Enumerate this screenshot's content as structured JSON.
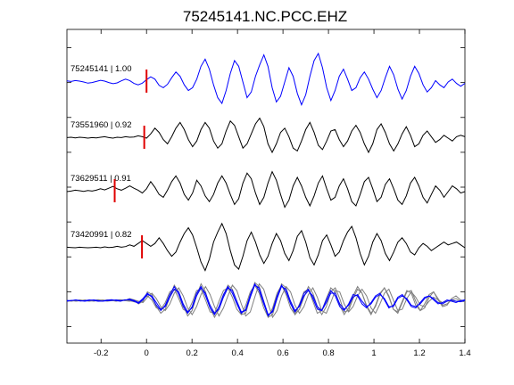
{
  "chart_data": {
    "type": "line",
    "title": "75245141.NC.PCC.EHZ",
    "xlabel": "",
    "ylabel": "",
    "xlim": [
      -0.35,
      1.4
    ],
    "x_ticks": [
      "-0.2",
      "0",
      "0.2",
      "0.4",
      "0.6",
      "0.8",
      "1",
      "1.2",
      "1.4"
    ],
    "x_tick_values": [
      -0.2,
      0,
      0.2,
      0.4,
      0.6,
      0.8,
      1,
      1.2,
      1.4
    ],
    "y_ticks_count": 9,
    "grid": false,
    "series": [
      {
        "label": "75245141 | 1.00",
        "color": "#0000ff",
        "pick_time": 0.0,
        "samples": [
          0.04,
          0.02,
          0.05,
          0.03,
          0.0,
          -0.04,
          -0.02,
          0.02,
          0.06,
          0.03,
          -0.02,
          -0.06,
          -0.03,
          0.04,
          0.1,
          0.05,
          -0.05,
          -0.1,
          -0.04,
          0.08,
          0.18,
          0.1,
          -0.12,
          -0.2,
          -0.08,
          0.15,
          0.35,
          0.2,
          -0.1,
          -0.3,
          -0.2,
          0.1,
          0.55,
          0.8,
          0.45,
          -0.1,
          -0.55,
          -0.75,
          -0.3,
          0.3,
          0.75,
          0.55,
          0.0,
          -0.55,
          -0.35,
          0.2,
          0.6,
          0.95,
          0.55,
          -0.2,
          -0.7,
          -0.5,
          0.0,
          0.5,
          0.2,
          -0.4,
          -0.8,
          -0.45,
          0.2,
          0.75,
          1.0,
          0.5,
          -0.2,
          -0.65,
          -0.3,
          0.2,
          0.45,
          0.1,
          -0.3,
          -0.2,
          0.15,
          0.35,
          0.1,
          -0.25,
          -0.55,
          -0.3,
          0.15,
          0.55,
          0.25,
          -0.25,
          -0.6,
          -0.3,
          0.2,
          0.55,
          0.3,
          -0.1,
          -0.35,
          -0.2,
          0.05,
          -0.1,
          -0.2,
          0.0,
          0.1,
          -0.05,
          -0.15,
          -0.05
        ]
      },
      {
        "label": "73551960 | 0.92",
        "color": "#000000",
        "pick_time": -0.01,
        "samples": [
          0.02,
          0.03,
          0.01,
          0.03,
          0.02,
          0.0,
          0.02,
          0.01,
          0.03,
          0.05,
          0.02,
          0.0,
          0.03,
          0.02,
          0.05,
          0.03,
          0.04,
          0.08,
          0.05,
          0.0,
          0.15,
          0.35,
          0.2,
          -0.05,
          -0.2,
          0.05,
          0.35,
          0.55,
          0.3,
          -0.05,
          -0.3,
          -0.1,
          0.3,
          0.55,
          0.35,
          -0.1,
          -0.35,
          -0.2,
          0.25,
          0.6,
          0.45,
          0.05,
          -0.35,
          -0.2,
          0.15,
          0.5,
          0.7,
          0.4,
          -0.2,
          -0.5,
          -0.2,
          0.2,
          0.35,
          0.05,
          -0.35,
          -0.45,
          -0.1,
          0.3,
          0.55,
          0.2,
          -0.25,
          -0.4,
          -0.1,
          0.25,
          0.3,
          -0.05,
          -0.3,
          -0.1,
          0.25,
          0.45,
          0.2,
          -0.2,
          -0.5,
          -0.2,
          0.3,
          0.5,
          0.2,
          -0.2,
          -0.45,
          -0.2,
          0.15,
          0.4,
          0.1,
          -0.3,
          -0.2,
          0.1,
          0.25,
          0.05,
          -0.15,
          -0.05,
          0.1,
          0.0,
          -0.1,
          0.05,
          0.1,
          0.05
        ]
      },
      {
        "label": "73629511 | 0.91",
        "color": "#000000",
        "pick_time": -0.14,
        "samples": [
          0.0,
          0.02,
          0.05,
          0.03,
          0.01,
          0.04,
          0.02,
          0.05,
          0.1,
          0.06,
          0.12,
          0.18,
          0.1,
          0.05,
          0.12,
          0.2,
          0.12,
          0.05,
          -0.05,
          0.1,
          0.35,
          0.15,
          -0.1,
          -0.2,
          0.05,
          0.35,
          0.55,
          0.3,
          -0.1,
          -0.3,
          -0.05,
          0.4,
          0.2,
          -0.15,
          -0.35,
          -0.1,
          0.3,
          0.55,
          0.3,
          -0.1,
          -0.45,
          -0.25,
          0.3,
          0.65,
          0.45,
          -0.05,
          -0.45,
          -0.2,
          0.3,
          0.7,
          0.4,
          -0.1,
          -0.55,
          -0.3,
          0.2,
          0.5,
          0.2,
          -0.2,
          -0.5,
          -0.15,
          0.3,
          0.55,
          0.1,
          -0.3,
          -0.2,
          0.2,
          0.45,
          0.1,
          -0.35,
          -0.5,
          -0.1,
          0.35,
          0.5,
          0.1,
          -0.35,
          -0.2,
          0.25,
          0.45,
          0.1,
          -0.3,
          -0.45,
          -0.15,
          0.3,
          0.5,
          0.2,
          -0.2,
          -0.4,
          -0.1,
          0.2,
          0.05,
          -0.2,
          0.0,
          0.2,
          0.1,
          -0.05,
          0.0
        ]
      },
      {
        "label": "73420991 | 0.82",
        "color": "#000000",
        "pick_time": -0.02,
        "samples": [
          0.02,
          0.01,
          0.0,
          0.02,
          0.01,
          0.0,
          0.01,
          0.02,
          0.0,
          0.03,
          0.01,
          0.02,
          0.05,
          0.02,
          0.04,
          0.1,
          0.05,
          0.15,
          0.25,
          0.15,
          0.05,
          0.15,
          0.35,
          0.15,
          -0.1,
          -0.3,
          -0.15,
          0.2,
          0.5,
          0.7,
          0.45,
          0.0,
          -0.5,
          -0.8,
          -0.4,
          0.2,
          0.55,
          0.85,
          0.5,
          -0.1,
          -0.6,
          -0.75,
          -0.3,
          0.25,
          0.55,
          0.2,
          -0.25,
          -0.55,
          -0.3,
          0.15,
          0.5,
          0.25,
          -0.2,
          -0.45,
          -0.1,
          0.4,
          0.6,
          0.2,
          -0.35,
          -0.6,
          -0.25,
          0.25,
          0.45,
          0.1,
          -0.3,
          -0.15,
          0.25,
          0.55,
          0.75,
          0.35,
          -0.2,
          -0.6,
          -0.3,
          0.2,
          0.5,
          0.25,
          -0.2,
          -0.45,
          -0.15,
          0.2,
          0.35,
          0.15,
          -0.15,
          -0.25,
          0.0,
          0.15,
          0.05,
          -0.1,
          0.0,
          0.1,
          0.2,
          0.1,
          0.15,
          0.2,
          0.1,
          0.0
        ]
      }
    ],
    "stack": {
      "description_colors": [
        "#0000ff",
        "#808080"
      ],
      "samples_blue_1": [
        0.03,
        0.02,
        0.05,
        0.02,
        0.0,
        0.03,
        0.05,
        0.02,
        0.0,
        0.02,
        0.03,
        0.05,
        0.02,
        0.04,
        0.08,
        0.03,
        -0.05,
        0.1,
        0.3,
        0.15,
        -0.15,
        -0.35,
        -0.15,
        0.25,
        0.55,
        0.25,
        -0.2,
        -0.45,
        -0.2,
        0.3,
        0.55,
        0.2,
        -0.25,
        -0.5,
        -0.2,
        0.25,
        0.55,
        0.3,
        -0.1,
        -0.45,
        -0.3,
        0.25,
        0.65,
        0.4,
        -0.1,
        -0.55,
        -0.35,
        0.2,
        0.6,
        0.35,
        -0.1,
        -0.4,
        -0.15,
        0.3,
        0.45,
        0.1,
        -0.3,
        -0.35,
        0.05,
        0.4,
        0.2,
        -0.2,
        -0.35,
        -0.1,
        0.25,
        0.2,
        -0.1,
        -0.25,
        -0.05,
        0.2,
        0.3,
        0.05,
        -0.25,
        -0.15,
        0.15,
        0.25,
        0.05,
        -0.2,
        -0.25,
        -0.05,
        0.15,
        0.2,
        0.05,
        -0.1,
        -0.05,
        0.05,
        0.0,
        -0.05,
        0.02,
        0.05
      ],
      "samples_blue_2": [
        0.0,
        0.03,
        0.04,
        0.01,
        0.02,
        0.05,
        0.03,
        0.0,
        0.01,
        0.04,
        0.06,
        0.02,
        0.0,
        0.05,
        0.05,
        0.0,
        -0.08,
        0.05,
        0.25,
        0.2,
        -0.05,
        -0.3,
        -0.2,
        0.15,
        0.45,
        0.35,
        -0.1,
        -0.4,
        -0.25,
        0.2,
        0.5,
        0.3,
        -0.15,
        -0.45,
        -0.3,
        0.15,
        0.5,
        0.4,
        0.0,
        -0.4,
        -0.35,
        0.15,
        0.6,
        0.5,
        0.0,
        -0.5,
        -0.4,
        0.1,
        0.55,
        0.45,
        0.0,
        -0.35,
        -0.2,
        0.2,
        0.4,
        0.2,
        -0.2,
        -0.35,
        -0.05,
        0.3,
        0.3,
        -0.1,
        -0.3,
        -0.15,
        0.15,
        0.25,
        0.0,
        -0.2,
        -0.1,
        0.15,
        0.25,
        0.1,
        -0.2,
        -0.2,
        0.1,
        0.2,
        0.1,
        -0.15,
        -0.2,
        -0.1,
        0.1,
        0.2,
        0.1,
        -0.05,
        -0.1,
        0.0,
        0.05,
        0.0,
        -0.02,
        0.03
      ],
      "samples_gray_1": [
        0.02,
        0.0,
        0.03,
        0.05,
        0.02,
        0.0,
        0.03,
        0.06,
        0.03,
        0.0,
        0.02,
        0.04,
        0.06,
        0.03,
        0.1,
        0.05,
        -0.1,
        0.0,
        0.35,
        0.25,
        -0.2,
        -0.45,
        -0.3,
        0.15,
        0.6,
        0.35,
        -0.15,
        -0.55,
        -0.35,
        0.2,
        0.65,
        0.35,
        -0.25,
        -0.6,
        -0.3,
        0.2,
        0.6,
        0.45,
        0.0,
        -0.5,
        -0.45,
        0.15,
        0.7,
        0.55,
        0.0,
        -0.6,
        -0.5,
        0.1,
        0.65,
        0.5,
        -0.05,
        -0.5,
        -0.3,
        0.15,
        0.55,
        0.3,
        -0.2,
        -0.5,
        -0.2,
        0.35,
        0.5,
        0.1,
        -0.4,
        -0.35,
        0.1,
        0.45,
        0.3,
        -0.15,
        -0.45,
        -0.2,
        0.25,
        0.5,
        0.2,
        -0.3,
        -0.4,
        0.0,
        0.4,
        0.3,
        -0.15,
        -0.35,
        -0.1,
        0.25,
        0.35,
        0.05,
        -0.2,
        -0.15,
        0.1,
        0.2,
        0.05,
        0.0
      ],
      "samples_gray_2": [
        0.0,
        0.02,
        0.04,
        0.01,
        0.03,
        0.02,
        0.0,
        0.03,
        0.05,
        0.02,
        0.04,
        0.01,
        0.03,
        0.06,
        0.02,
        -0.02,
        -0.05,
        0.1,
        0.2,
        0.05,
        -0.25,
        -0.3,
        -0.05,
        0.35,
        0.45,
        0.1,
        -0.3,
        -0.4,
        -0.05,
        0.4,
        0.45,
        0.05,
        -0.4,
        -0.45,
        0.0,
        0.4,
        0.5,
        0.15,
        -0.3,
        -0.5,
        -0.15,
        0.35,
        0.6,
        0.3,
        -0.25,
        -0.6,
        -0.25,
        0.3,
        0.6,
        0.25,
        -0.25,
        -0.5,
        -0.1,
        0.35,
        0.45,
        0.0,
        -0.45,
        -0.35,
        0.1,
        0.5,
        0.35,
        -0.15,
        -0.5,
        -0.25,
        0.2,
        0.55,
        0.3,
        -0.2,
        -0.5,
        -0.15,
        0.3,
        0.5,
        0.15,
        -0.3,
        -0.45,
        -0.05,
        0.35,
        0.4,
        0.0,
        -0.35,
        -0.25,
        0.15,
        0.35,
        0.1,
        -0.15,
        -0.1,
        0.05,
        0.1,
        0.0,
        -0.02
      ],
      "samples_gray_3": [
        0.01,
        0.03,
        0.0,
        0.02,
        0.05,
        0.01,
        0.03,
        0.0,
        0.02,
        0.05,
        0.03,
        0.0,
        0.04,
        0.02,
        0.0,
        0.05,
        0.0,
        -0.05,
        0.15,
        0.3,
        0.1,
        -0.2,
        -0.35,
        -0.1,
        0.3,
        0.5,
        0.2,
        -0.25,
        -0.5,
        -0.2,
        0.25,
        0.55,
        0.25,
        -0.2,
        -0.55,
        -0.25,
        0.2,
        0.6,
        0.4,
        -0.1,
        -0.55,
        -0.4,
        0.15,
        0.65,
        0.45,
        -0.1,
        -0.6,
        -0.35,
        0.2,
        0.55,
        0.35,
        -0.15,
        -0.45,
        -0.2,
        0.25,
        0.5,
        0.15,
        -0.35,
        -0.45,
        -0.05,
        0.4,
        0.35,
        -0.1,
        -0.4,
        -0.2,
        0.2,
        0.45,
        0.2,
        -0.25,
        -0.45,
        -0.1,
        0.3,
        0.45,
        0.05,
        -0.35,
        -0.3,
        0.1,
        0.35,
        0.15,
        -0.15,
        -0.2,
        0.0,
        0.15,
        0.05,
        -0.05,
        0.0,
        0.02,
        0.0,
        0.01,
        0.0
      ]
    },
    "pick_marker_color": "#e00000"
  }
}
